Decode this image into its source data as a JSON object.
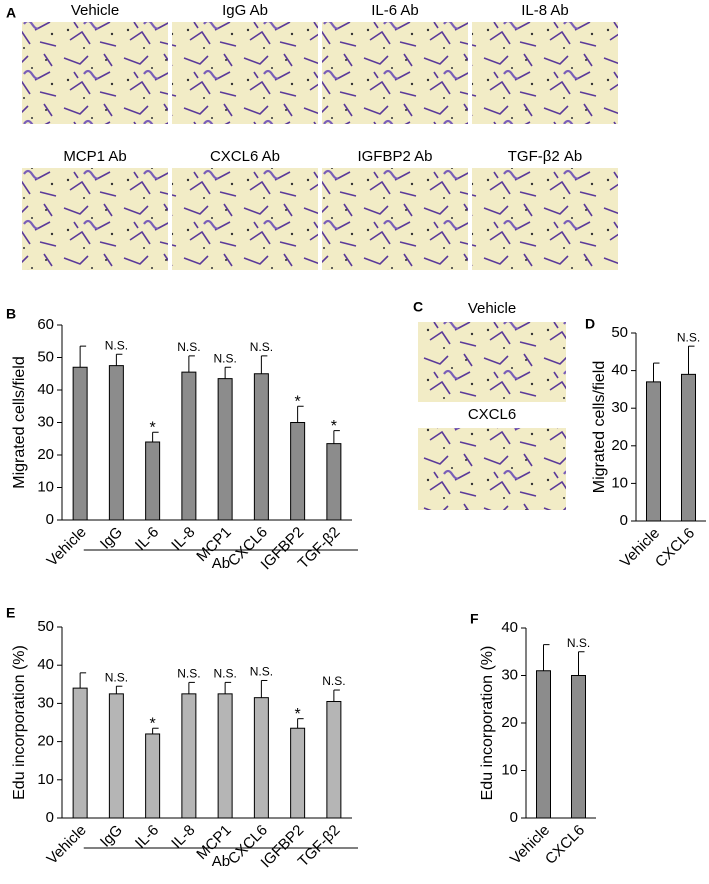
{
  "panel_a": {
    "label": "A",
    "images": [
      "Vehicle",
      "IgG Ab",
      "IL-6 Ab",
      "IL-8 Ab",
      "MCP1 Ab",
      "CXCL6 Ab",
      "IGFBP2 Ab",
      "TGF-β2 Ab"
    ]
  },
  "panel_c": {
    "label": "C",
    "images": [
      "Vehicle",
      "CXCL6"
    ]
  },
  "chart_data": [
    {
      "type": "bar",
      "label": "B",
      "y_label": "Migrated cells/field",
      "group_label": "Ab",
      "color": "#8c8c8c",
      "categories": [
        "Vehicle",
        "IgG",
        "IL-6",
        "IL-8",
        "MCP1",
        "CXCL6",
        "IGFBP2",
        "TGF-β2"
      ],
      "values": [
        47,
        47.5,
        24,
        45.5,
        43.5,
        45,
        30,
        23.5
      ],
      "errors": [
        6.5,
        3.5,
        3,
        5,
        3.5,
        5.5,
        5,
        4
      ],
      "annotations": [
        null,
        "N.S.",
        "*",
        "N.S.",
        "N.S.",
        "N.S.",
        "*",
        "*"
      ],
      "ylim": [
        0,
        60
      ],
      "yticks": [
        0,
        10,
        20,
        30,
        40,
        50,
        60
      ]
    },
    {
      "type": "bar",
      "label": "D",
      "y_label": "Migrated cells/field",
      "color": "#8c8c8c",
      "categories": [
        "Vehicle",
        "CXCL6"
      ],
      "values": [
        37,
        39
      ],
      "errors": [
        5,
        7.5
      ],
      "annotations": [
        null,
        "N.S."
      ],
      "ylim": [
        0,
        50
      ],
      "yticks": [
        0,
        10,
        20,
        30,
        40,
        50
      ]
    },
    {
      "type": "bar",
      "label": "E",
      "y_label": "Edu incorporation (%)",
      "group_label": "Ab",
      "color": "#b5b5b5",
      "categories": [
        "Vehicle",
        "IgG",
        "IL-6",
        "IL-8",
        "MCP1",
        "CXCL6",
        "IGFBP2",
        "TGF-β2"
      ],
      "values": [
        34,
        32.5,
        22,
        32.5,
        32.5,
        31.5,
        23.5,
        30.5
      ],
      "errors": [
        4,
        2,
        1.5,
        3,
        3,
        4.5,
        2.5,
        3
      ],
      "annotations": [
        null,
        "N.S.",
        "*",
        "N.S.",
        "N.S.",
        "N.S.",
        "*",
        "N.S."
      ],
      "ylim": [
        0,
        50
      ],
      "yticks": [
        0,
        10,
        20,
        30,
        40,
        50
      ]
    },
    {
      "type": "bar",
      "label": "F",
      "y_label": "Edu incorporation (%)",
      "color": "#8c8c8c",
      "categories": [
        "Vehicle",
        "CXCL6"
      ],
      "values": [
        31,
        30
      ],
      "errors": [
        5.5,
        5
      ],
      "annotations": [
        null,
        "N.S."
      ],
      "ylim": [
        0,
        40
      ],
      "yticks": [
        0,
        10,
        20,
        30,
        40
      ]
    }
  ]
}
